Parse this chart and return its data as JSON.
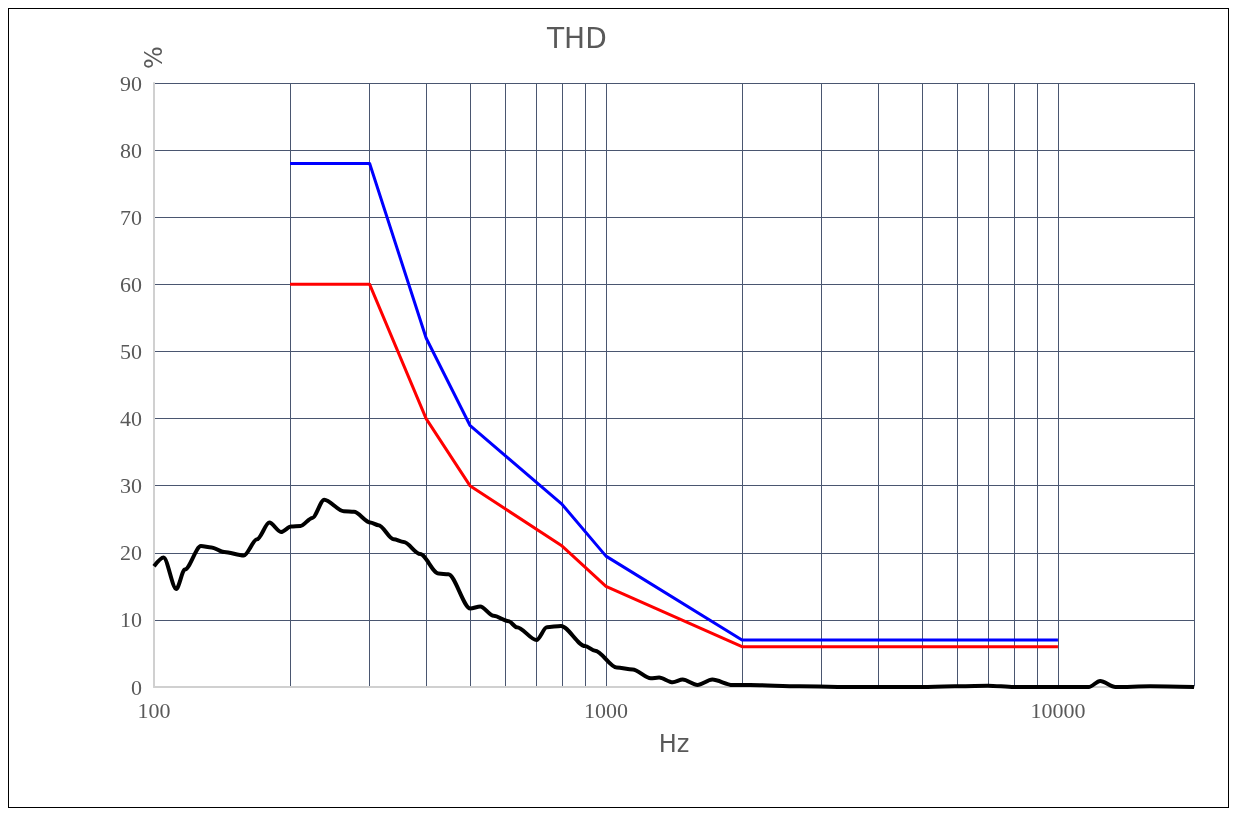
{
  "chart_data": {
    "type": "line",
    "title": "THD",
    "xlabel": "Hz",
    "ylabel": "%",
    "log": "x",
    "grid": true,
    "marker": "none",
    "line_style": "solid",
    "xlim": [
      100,
      20000
    ],
    "xticks": [
      100,
      {
        "value": 200,
        "label": null
      },
      {
        "value": 300,
        "label": null
      },
      {
        "value": 400,
        "label": null
      },
      {
        "value": 500,
        "label": null
      },
      {
        "value": 600,
        "label": null
      },
      {
        "value": 700,
        "label": null
      },
      {
        "value": 800,
        "label": null
      },
      {
        "value": 900,
        "label": null
      },
      1000,
      {
        "value": 2000,
        "label": null
      },
      {
        "value": 3000,
        "label": null
      },
      {
        "value": 4000,
        "label": null
      },
      {
        "value": 5000,
        "label": null
      },
      {
        "value": 6000,
        "label": null
      },
      {
        "value": 7000,
        "label": null
      },
      {
        "value": 8000,
        "label": null
      },
      {
        "value": 9000,
        "label": null
      },
      10000,
      {
        "value": 20000,
        "label": null
      }
    ],
    "ylim": [
      0,
      90
    ],
    "yticks": [
      0,
      10,
      20,
      30,
      40,
      50,
      60,
      70,
      80,
      90
    ],
    "series": [
      {
        "color": "#0000ff",
        "x": [
          200,
          300,
          400,
          500,
          800,
          1000,
          2000,
          10000
        ],
        "values": [
          78,
          78,
          52,
          39,
          27.2,
          19.5,
          7,
          7
        ]
      },
      {
        "color": "#ff0000",
        "x": [
          200,
          300,
          400,
          500,
          800,
          1000,
          2000,
          10000
        ],
        "values": [
          60,
          60,
          40,
          30,
          21,
          15,
          6,
          6
        ]
      },
      {
        "color": "#000000",
        "x": [
          100,
          105,
          112,
          117,
          127,
          134,
          143,
          158,
          169,
          180,
          191,
          201,
          211,
          224,
          238,
          263,
          277,
          301,
          314,
          339,
          357,
          388,
          426,
          448,
          501,
          527,
          564,
          609,
          635,
          702,
          740,
          795,
          899,
          946,
          1056,
          1146,
          1256,
          1311,
          1405,
          1478,
          1594,
          1719,
          1905,
          2085,
          2678,
          3600,
          5000,
          7000,
          8000,
          11700,
          12400,
          13400,
          16000,
          20000
        ],
        "values": [
          18.0,
          19.3,
          14.6,
          17.5,
          21.0,
          20.8,
          20.1,
          19.6,
          22.0,
          24.5,
          23.1,
          23.9,
          24.0,
          25.2,
          27.9,
          26.2,
          26.1,
          24.5,
          24.1,
          22.0,
          21.6,
          19.8,
          16.9,
          16.8,
          11.7,
          12.0,
          10.6,
          9.8,
          8.9,
          7.0,
          8.9,
          9.1,
          6.1,
          5.4,
          2.9,
          2.6,
          1.3,
          1.4,
          0.7,
          1.1,
          0.3,
          1.1,
          0.3,
          0.3,
          0.1,
          0,
          0,
          0.2,
          0,
          0,
          0.9,
          0,
          0.1,
          0
        ]
      }
    ]
  }
}
